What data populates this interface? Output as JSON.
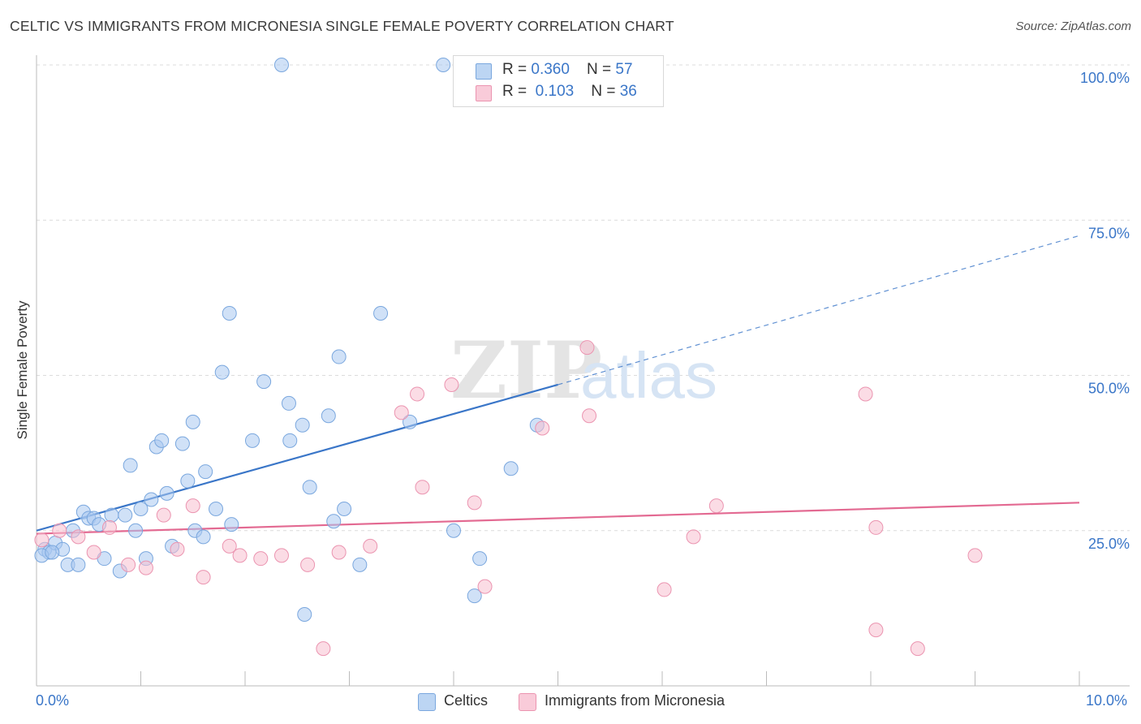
{
  "title": "CELTIC VS IMMIGRANTS FROM MICRONESIA SINGLE FEMALE POVERTY CORRELATION CHART",
  "source": "Source: ZipAtlas.com",
  "watermark": {
    "zip": "ZIP",
    "atlas": "atlas"
  },
  "legend_top": {
    "rows": [
      {
        "r_label": "R = ",
        "r_value": "0.360",
        "n_label": "N = ",
        "n_value": "57",
        "color": "#a9c9f0"
      },
      {
        "r_label": "R = ",
        "r_value": "0.103",
        "n_label": "N = ",
        "n_value": "36",
        "color": "#f7bfd0"
      }
    ]
  },
  "legend_bottom": {
    "items": [
      "Celtics",
      "Immigrants from Micronesia"
    ]
  },
  "x_ticks": {
    "left": "0.0%",
    "right": "10.0%"
  },
  "chart_data": {
    "type": "scatter",
    "title": "CELTIC VS IMMIGRANTS FROM MICRONESIA SINGLE FEMALE POVERTY CORRELATION CHART",
    "xlabel": "",
    "ylabel": "Single Female Poverty",
    "xlim": [
      0,
      10
    ],
    "ylim": [
      0,
      100
    ],
    "y_ticks": [
      25,
      50,
      75,
      100
    ],
    "y_tick_labels": [
      "25.0%",
      "50.0%",
      "75.0%",
      "100.0%"
    ],
    "grid": true,
    "legend_placement": "bottom",
    "series": [
      {
        "name": "Celtics",
        "color": "#3a76c8",
        "fill": "#a9c9f0",
        "points": [
          [
            0.08,
            22.0
          ],
          [
            0.12,
            21.5
          ],
          [
            0.18,
            23.0
          ],
          [
            0.25,
            22.0
          ],
          [
            0.3,
            19.5
          ],
          [
            0.35,
            25.0
          ],
          [
            0.4,
            19.5
          ],
          [
            0.45,
            28.0
          ],
          [
            0.5,
            27.0
          ],
          [
            0.55,
            27.0
          ],
          [
            0.6,
            26.0
          ],
          [
            0.65,
            20.5
          ],
          [
            0.72,
            27.5
          ],
          [
            0.8,
            18.5
          ],
          [
            0.85,
            27.5
          ],
          [
            0.9,
            35.5
          ],
          [
            0.95,
            25.0
          ],
          [
            1.0,
            28.5
          ],
          [
            1.05,
            20.5
          ],
          [
            1.1,
            30.0
          ],
          [
            1.15,
            38.5
          ],
          [
            1.2,
            39.5
          ],
          [
            1.25,
            31.0
          ],
          [
            1.3,
            22.5
          ],
          [
            1.4,
            39.0
          ],
          [
            1.45,
            33.0
          ],
          [
            1.5,
            42.5
          ],
          [
            1.52,
            25.0
          ],
          [
            1.6,
            24.0
          ],
          [
            1.62,
            34.5
          ],
          [
            1.72,
            28.5
          ],
          [
            1.78,
            50.5
          ],
          [
            1.85,
            60.0
          ],
          [
            1.87,
            26.0
          ],
          [
            2.07,
            39.5
          ],
          [
            2.18,
            49.0
          ],
          [
            2.35,
            100.0
          ],
          [
            2.42,
            45.5
          ],
          [
            2.43,
            39.5
          ],
          [
            2.55,
            42.0
          ],
          [
            2.57,
            11.5
          ],
          [
            2.62,
            32.0
          ],
          [
            2.8,
            43.5
          ],
          [
            2.85,
            26.5
          ],
          [
            2.9,
            53.0
          ],
          [
            2.95,
            28.5
          ],
          [
            3.1,
            19.5
          ],
          [
            3.3,
            60.0
          ],
          [
            3.58,
            42.5
          ],
          [
            3.9,
            100.0
          ],
          [
            4.0,
            25.0
          ],
          [
            4.2,
            14.5
          ],
          [
            4.25,
            20.5
          ],
          [
            4.55,
            35.0
          ],
          [
            4.8,
            42.0
          ],
          [
            0.05,
            21.0
          ],
          [
            0.15,
            21.5
          ]
        ],
        "trend": {
          "x0": 0,
          "y0": 25.0,
          "x1": 5.0,
          "y1": 48.5,
          "dashed_to_x": 10,
          "dashed_to_y": 72.5
        }
      },
      {
        "name": "Immigrants from Micronesia",
        "color": "#e36a92",
        "fill": "#f7bfd0",
        "points": [
          [
            0.05,
            23.5
          ],
          [
            0.22,
            25.0
          ],
          [
            0.4,
            24.0
          ],
          [
            0.55,
            21.5
          ],
          [
            0.7,
            25.5
          ],
          [
            0.88,
            19.5
          ],
          [
            1.05,
            19.0
          ],
          [
            1.22,
            27.5
          ],
          [
            1.35,
            22.0
          ],
          [
            1.5,
            29.0
          ],
          [
            1.6,
            17.5
          ],
          [
            1.85,
            22.5
          ],
          [
            1.95,
            21.0
          ],
          [
            2.15,
            20.5
          ],
          [
            2.35,
            21.0
          ],
          [
            2.6,
            19.5
          ],
          [
            2.75,
            6.0
          ],
          [
            2.9,
            21.5
          ],
          [
            3.2,
            22.5
          ],
          [
            3.5,
            44.0
          ],
          [
            3.65,
            47.0
          ],
          [
            3.7,
            32.0
          ],
          [
            3.98,
            48.5
          ],
          [
            4.2,
            29.5
          ],
          [
            4.3,
            16.0
          ],
          [
            4.85,
            41.5
          ],
          [
            5.28,
            54.5
          ],
          [
            5.3,
            43.5
          ],
          [
            6.02,
            15.5
          ],
          [
            6.3,
            24.0
          ],
          [
            6.52,
            29.0
          ],
          [
            7.95,
            47.0
          ],
          [
            8.05,
            25.5
          ],
          [
            8.05,
            9.0
          ],
          [
            8.45,
            6.0
          ],
          [
            9.0,
            21.0
          ]
        ],
        "trend": {
          "x0": 0,
          "y0": 24.5,
          "x1": 10,
          "y1": 29.5
        }
      }
    ]
  }
}
